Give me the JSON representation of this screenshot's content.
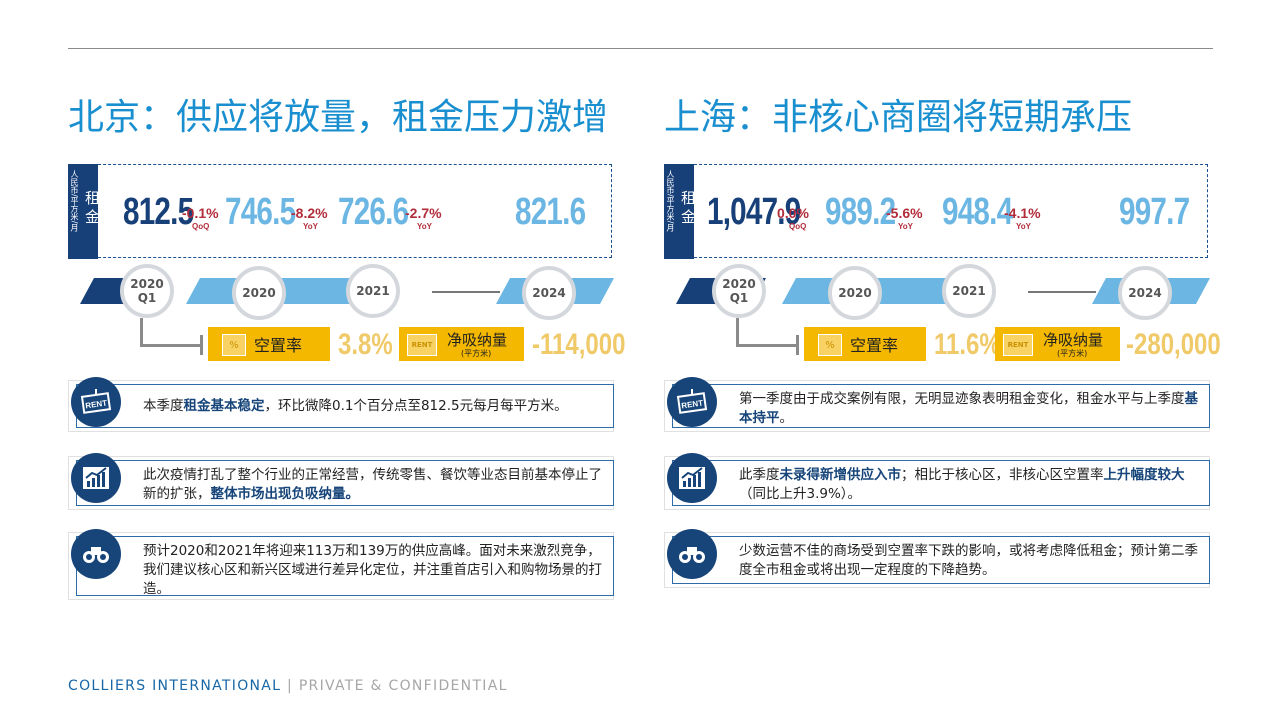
{
  "footer": {
    "company": "COLLIERS INTERNATIONAL",
    "separator": " | ",
    "note": "PRIVATE & CONFIDENTIAL"
  },
  "beijing": {
    "title": "北京：供应将放量，租金压力激增",
    "unit": "人民币/平方米/月",
    "rent_label": "租金",
    "values": {
      "v2020q1": "812.5",
      "c1": "-0.1%",
      "c1tag": "QoQ",
      "v2020": "746.5",
      "c2": "-8.2%",
      "c2tag": "YoY",
      "v2021": "726.6",
      "c3": "-2.7%",
      "c3tag": "YoY",
      "v2024": "821.6"
    },
    "timeline": {
      "t1a": "2020",
      "t1b": "Q1",
      "t2": "2020",
      "t3": "2021",
      "t4": "2024"
    },
    "vacancy_label": "空置率",
    "vacancy_value": "3.8%",
    "absorption_label": "净吸纳量",
    "absorption_unit": "(平方米)",
    "absorption_value": "-114,000",
    "rent_icon_text": "RENT",
    "pct_icon_text": "%",
    "info1": {
      "pre": "本季度",
      "bold": "租金基本稳定",
      "post": "，环比微降0.1个百分点至812.5元每月每平方米。"
    },
    "info2": {
      "pre": "此次疫情打乱了整个行业的正常经营，传统零售、餐饮等业态目前基本停止了新的扩张，",
      "bold": "整体市场出现负吸纳量。",
      "post": ""
    },
    "info3": {
      "pre": "预计2020和2021年将迎来113万和139万的供应高峰。面对未来激烈竞争，我们建议核心区和新兴区域进行差异化定位，并注重首店引入和购物场景的打造。",
      "bold": "",
      "post": ""
    }
  },
  "shanghai": {
    "title": "上海：非核心商圈将短期承压",
    "unit": "人民币/平方米/月",
    "rent_label": "租金",
    "values": {
      "v2020q1": "1,047.9",
      "c1": "0.0%",
      "c1tag": "QoQ",
      "v2020": "989.2",
      "c2": "-5.6%",
      "c2tag": "YoY",
      "v2021": "948.4",
      "c3": "-4.1%",
      "c3tag": "YoY",
      "v2024": "997.7"
    },
    "timeline": {
      "t1a": "2020",
      "t1b": "Q1",
      "t2": "2020",
      "t3": "2021",
      "t4": "2024"
    },
    "vacancy_label": "空置率",
    "vacancy_value": "11.6%",
    "absorption_label": "净吸纳量",
    "absorption_unit": "(平方米)",
    "absorption_value": "-280,000",
    "rent_icon_text": "RENT",
    "pct_icon_text": "%",
    "info1": {
      "pre": "第一季度由于成交案例有限，无明显迹象表明租金变化，租金水平与上季度",
      "bold": "基本持平",
      "post": "。"
    },
    "info2": {
      "pre": "此季度",
      "bold": "未录得新增供应入市",
      "mid": "；相比于核心区，非核心区空置率",
      "bold2": "上升幅度较大",
      "post": "（同比上升3.9%）。"
    },
    "info3": {
      "pre": "少数运营不佳的商场受到空置率下跌的影响，或将考虑降低租金；预计第二季度全市租金或将出现一定程度的下降趋势。",
      "bold": "",
      "post": ""
    }
  }
}
